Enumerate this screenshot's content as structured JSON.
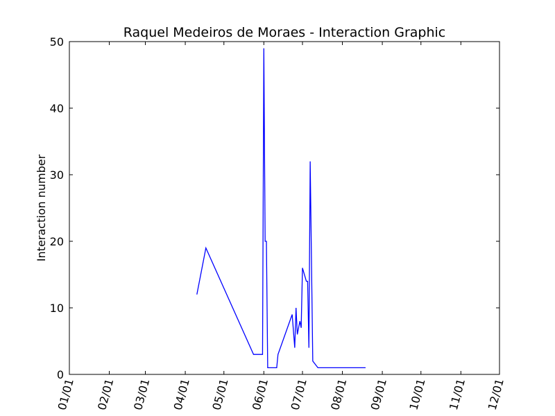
{
  "chart_data": {
    "type": "line",
    "title": "Raquel Medeiros de Moraes - Interaction Graphic",
    "xlabel": "",
    "ylabel": "Interaction number",
    "x_ticks": [
      "01/01",
      "02/01",
      "03/01",
      "04/01",
      "05/01",
      "06/01",
      "07/01",
      "08/01",
      "09/01",
      "10/01",
      "11/01",
      "12/01"
    ],
    "y_ticks": [
      "0",
      "10",
      "20",
      "30",
      "40",
      "50"
    ],
    "xlim": [
      "01/01",
      "12/01"
    ],
    "ylim": [
      0,
      50
    ],
    "grid": false,
    "line_color": "#0000ff",
    "series": [
      {
        "x": [
          "04/10",
          "04/17",
          "05/24",
          "05/31",
          "06/01",
          "06/02",
          "06/03",
          "06/04",
          "06/05",
          "06/07",
          "06/11",
          "06/12",
          "06/23",
          "06/25",
          "06/26",
          "06/27",
          "06/29",
          "06/30",
          "07/01",
          "07/04",
          "07/05",
          "07/06",
          "07/07",
          "07/09",
          "07/13",
          "07/15",
          "07/18",
          "08/02",
          "08/19"
        ],
        "values": [
          12,
          19,
          3,
          3,
          49,
          20,
          20,
          1,
          1,
          1,
          1,
          3,
          9,
          4,
          10,
          6,
          8,
          7,
          16,
          14,
          14,
          4,
          32,
          2,
          1,
          1,
          1,
          1,
          1
        ]
      }
    ]
  }
}
